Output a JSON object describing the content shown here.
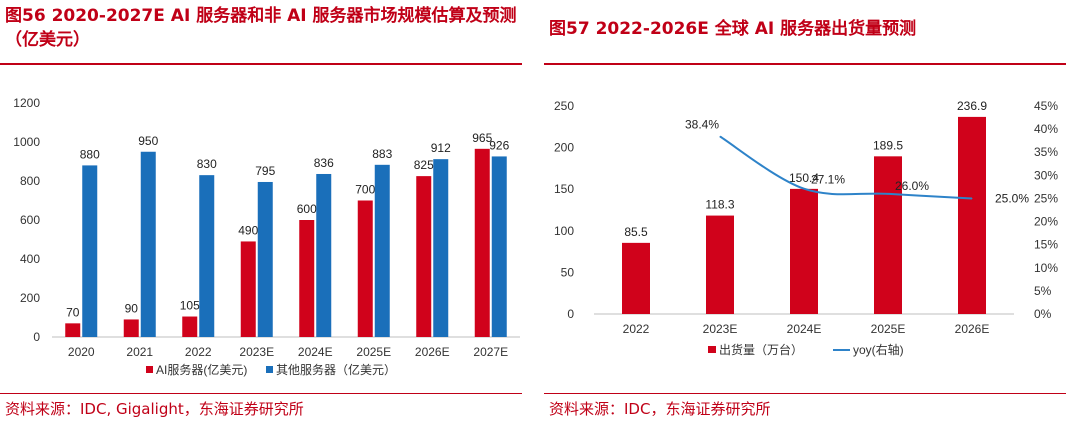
{
  "left": {
    "title": "图56  2020-2027E AI 服务器和非 AI 服务器市场规模估算及预测（亿美元）",
    "source": "资料来源：IDC, Gigalight，东海证券研究所",
    "colors": {
      "series1": "#d0021b",
      "series2": "#1a6fba",
      "title": "#c00017"
    },
    "chart_data": {
      "type": "bar",
      "categories": [
        "2020",
        "2021",
        "2022",
        "2023E",
        "2024E",
        "2025E",
        "2026E",
        "2027E"
      ],
      "series": [
        {
          "name": "AI服务器(亿美元)",
          "values": [
            70,
            90,
            105,
            490,
            600,
            700,
            825,
            965
          ]
        },
        {
          "name": "其他服务器（亿美元）",
          "values": [
            880,
            950,
            830,
            795,
            836,
            883,
            912,
            926
          ]
        }
      ],
      "yticks": [
        "0",
        "200",
        "400",
        "600",
        "800",
        "1000",
        "1200"
      ],
      "ylim": [
        0,
        1200
      ],
      "grid": false,
      "legend": "bottom"
    }
  },
  "right": {
    "title": "图57  2022-2026E 全球 AI 服务器出货量预测",
    "source": "资料来源：IDC，东海证券研究所",
    "colors": {
      "bars": "#d0021b",
      "line": "#2e83c9"
    },
    "chart_data": {
      "type": "bar",
      "categories": [
        "2022",
        "2023E",
        "2024E",
        "2025E",
        "2026E"
      ],
      "series": [
        {
          "name": "出货量（万台）",
          "values": [
            85.5,
            118.3,
            150.4,
            189.5,
            236.9
          ],
          "labels": [
            "85.5",
            "118.3",
            "150.4",
            "189.5",
            "236.9"
          ]
        },
        {
          "name": "yoy(右轴)",
          "type": "line",
          "values": [
            null,
            38.4,
            27.1,
            26.0,
            25.0
          ],
          "labels": [
            "",
            "38.4%",
            "27.1%",
            "26.0%",
            "25.0%"
          ]
        }
      ],
      "yticks": [
        "0",
        "50",
        "100",
        "150",
        "200",
        "250"
      ],
      "ylim": [
        0,
        250
      ],
      "y2ticks": [
        "0%",
        "5%",
        "10%",
        "15%",
        "20%",
        "25%",
        "30%",
        "35%",
        "40%",
        "45%"
      ],
      "y2lim": [
        0,
        45
      ],
      "grid": false,
      "legend": "bottom"
    }
  }
}
